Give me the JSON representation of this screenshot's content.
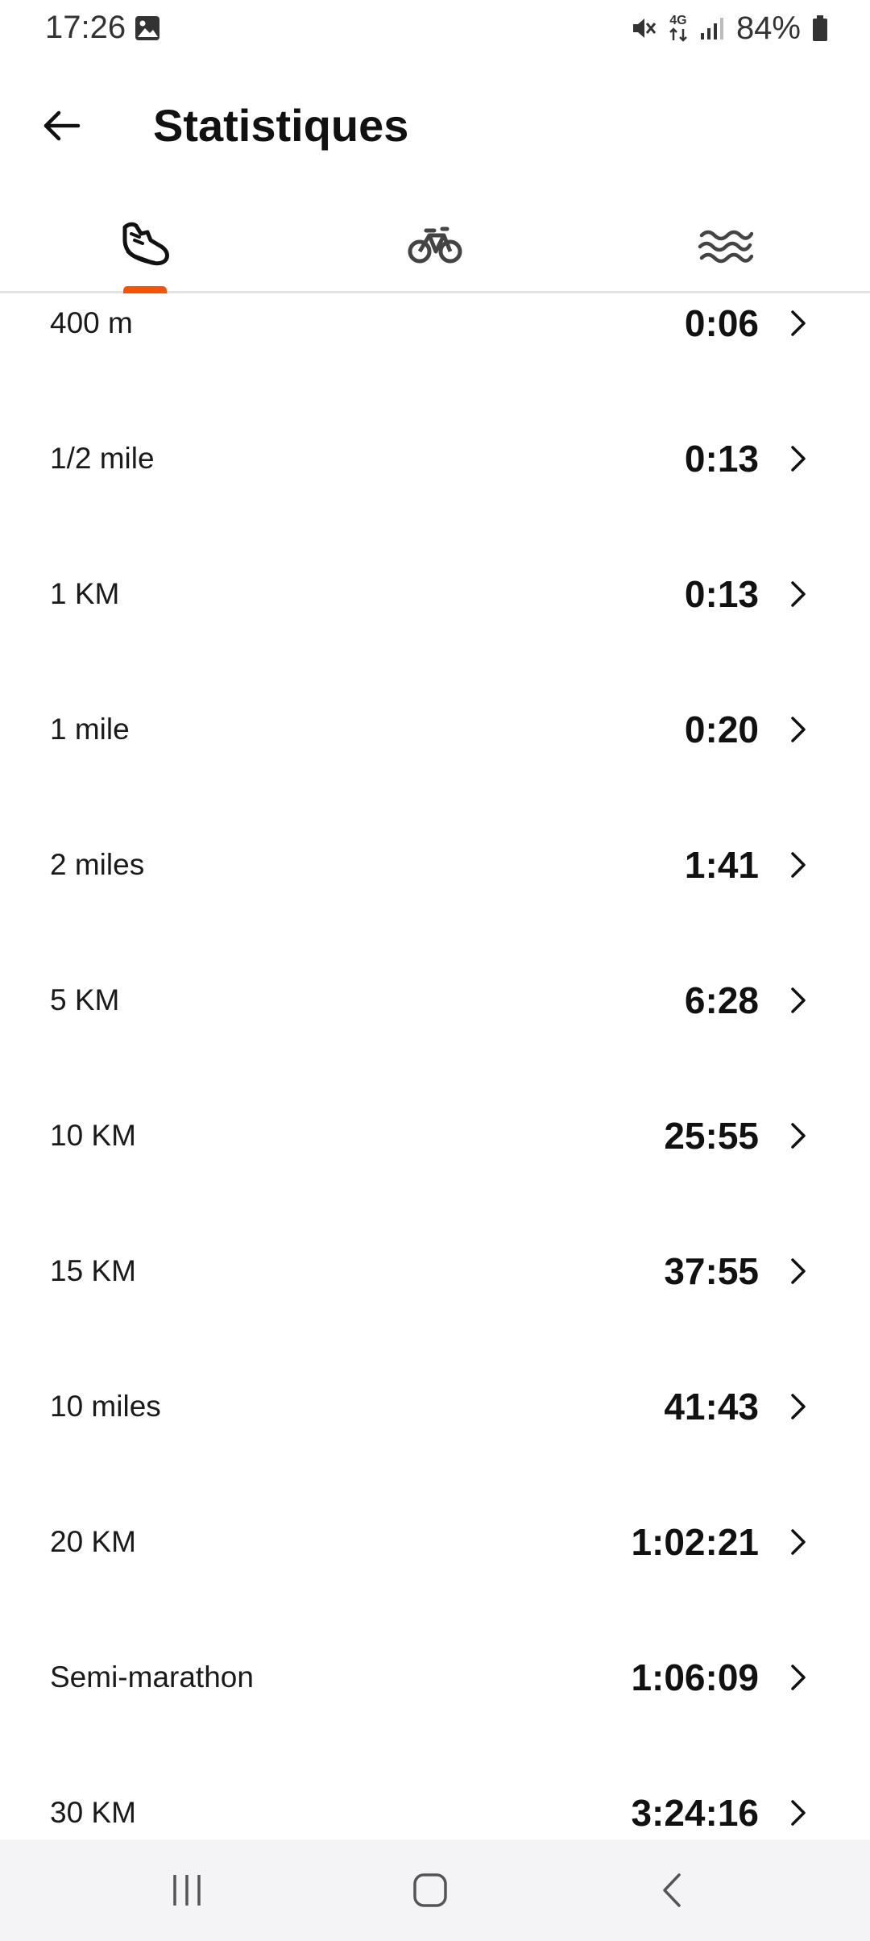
{
  "status_bar": {
    "time": "17:26",
    "network": "4G",
    "battery": "84%"
  },
  "header": {
    "title": "Statistiques",
    "back_icon": "arrow-left-icon"
  },
  "tabs": [
    {
      "name": "run",
      "icon": "running-shoe-icon",
      "active": true
    },
    {
      "name": "ride",
      "icon": "bicycle-icon",
      "active": false
    },
    {
      "name": "swim",
      "icon": "waves-icon",
      "active": false
    }
  ],
  "accent_color": "#fc5200",
  "best_efforts": [
    {
      "label": "400 m",
      "time": "0:06"
    },
    {
      "label": "1/2 mile",
      "time": "0:13"
    },
    {
      "label": "1 KM",
      "time": "0:13"
    },
    {
      "label": "1 mile",
      "time": "0:20"
    },
    {
      "label": "2 miles",
      "time": "1:41"
    },
    {
      "label": "5 KM",
      "time": "6:28"
    },
    {
      "label": "10 KM",
      "time": "25:55"
    },
    {
      "label": "15 KM",
      "time": "37:55"
    },
    {
      "label": "10 miles",
      "time": "41:43"
    },
    {
      "label": "20 KM",
      "time": "1:02:21"
    },
    {
      "label": "Semi-marathon",
      "time": "1:06:09"
    },
    {
      "label": "30 KM",
      "time": "3:24:16"
    }
  ]
}
